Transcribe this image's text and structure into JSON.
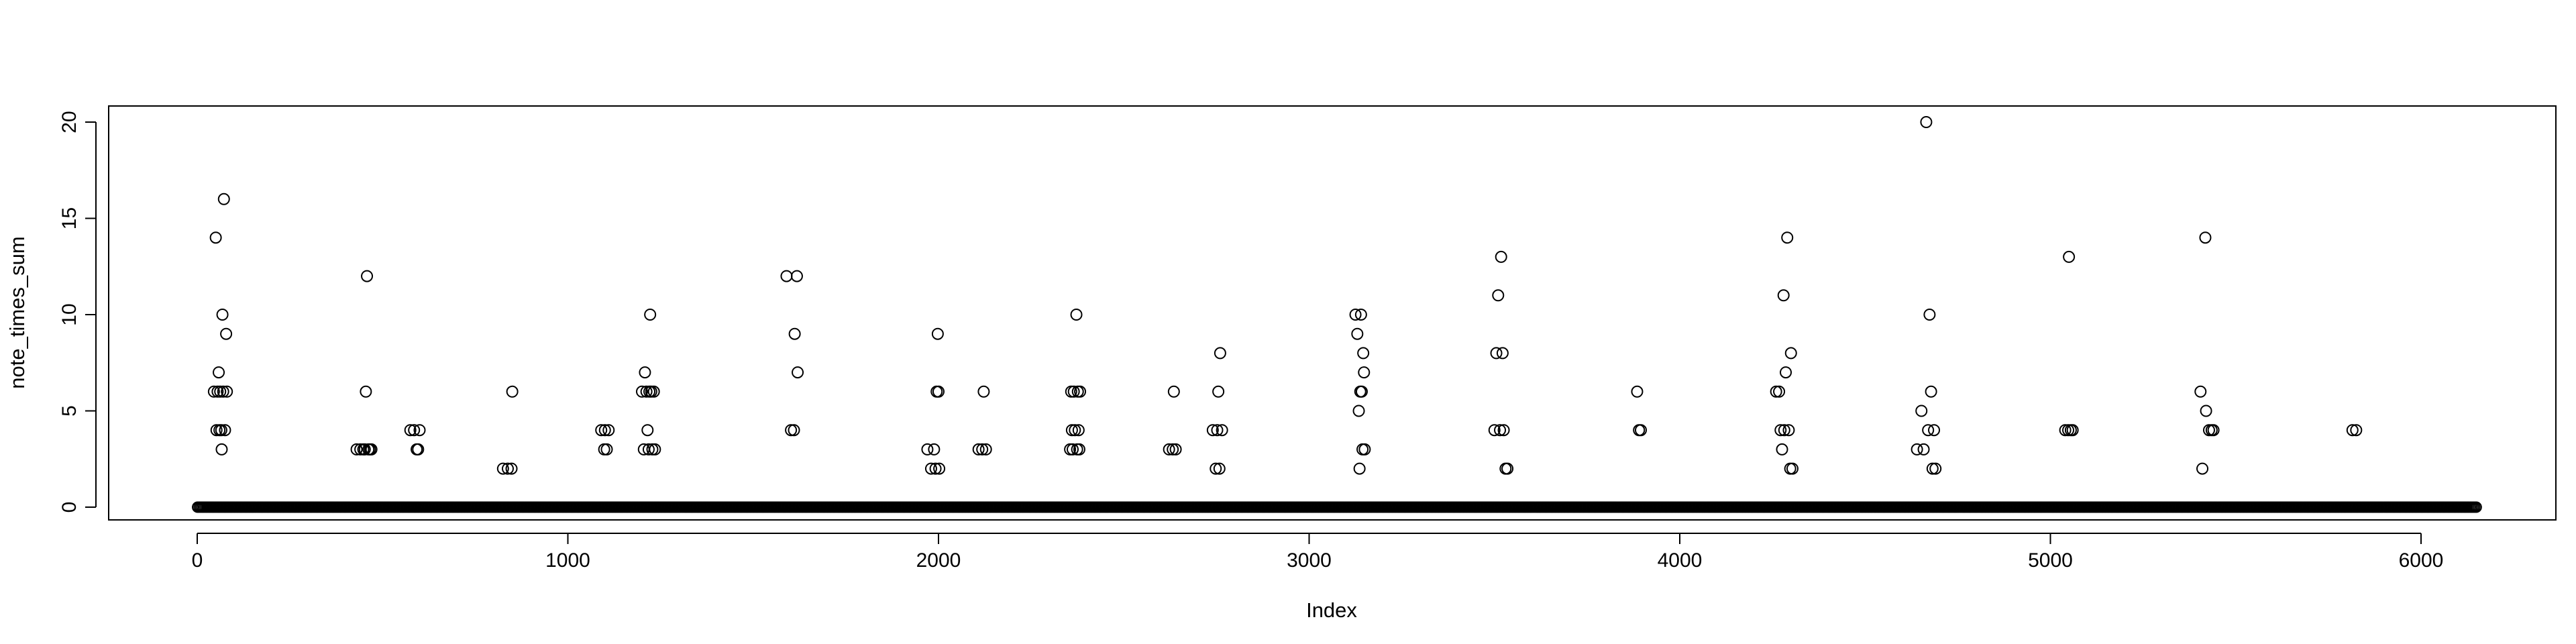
{
  "chart_data": {
    "type": "scatter",
    "title": "",
    "xlabel": "Index",
    "ylabel": "note_times_sum",
    "xlim": [
      0,
      6150
    ],
    "ylim": [
      0,
      20
    ],
    "x_ticks": [
      0,
      1000,
      2000,
      3000,
      4000,
      5000,
      6000
    ],
    "y_ticks": [
      0,
      5,
      10,
      15,
      20
    ],
    "x_tick_labels": [
      "0",
      "1000",
      "2000",
      "3000",
      "4000",
      "5000",
      "6000"
    ],
    "y_tick_labels": [
      "0",
      "5",
      "10",
      "15",
      "20"
    ],
    "grid": false,
    "legend": "none",
    "marker": "open-circle",
    "baseline": {
      "y": 0,
      "x_from": 1,
      "x_to": 6150,
      "note": "all other indices have value 0"
    },
    "points": [
      {
        "x": 45,
        "y": 6
      },
      {
        "x": 50,
        "y": 14
      },
      {
        "x": 52,
        "y": 4
      },
      {
        "x": 55,
        "y": 6
      },
      {
        "x": 58,
        "y": 7
      },
      {
        "x": 60,
        "y": 4
      },
      {
        "x": 62,
        "y": 6
      },
      {
        "x": 65,
        "y": 4
      },
      {
        "x": 66,
        "y": 3
      },
      {
        "x": 68,
        "y": 10
      },
      {
        "x": 70,
        "y": 6
      },
      {
        "x": 72,
        "y": 16
      },
      {
        "x": 75,
        "y": 4
      },
      {
        "x": 78,
        "y": 9
      },
      {
        "x": 80,
        "y": 6
      },
      {
        "x": 430,
        "y": 3
      },
      {
        "x": 440,
        "y": 3
      },
      {
        "x": 448,
        "y": 3
      },
      {
        "x": 452,
        "y": 3
      },
      {
        "x": 455,
        "y": 6
      },
      {
        "x": 458,
        "y": 12
      },
      {
        "x": 462,
        "y": 3
      },
      {
        "x": 466,
        "y": 3
      },
      {
        "x": 470,
        "y": 3
      },
      {
        "x": 575,
        "y": 4
      },
      {
        "x": 585,
        "y": 4
      },
      {
        "x": 592,
        "y": 3
      },
      {
        "x": 596,
        "y": 3
      },
      {
        "x": 600,
        "y": 4
      },
      {
        "x": 825,
        "y": 2
      },
      {
        "x": 838,
        "y": 2
      },
      {
        "x": 848,
        "y": 2
      },
      {
        "x": 850,
        "y": 6
      },
      {
        "x": 1090,
        "y": 4
      },
      {
        "x": 1098,
        "y": 3
      },
      {
        "x": 1100,
        "y": 4
      },
      {
        "x": 1105,
        "y": 3
      },
      {
        "x": 1110,
        "y": 4
      },
      {
        "x": 1200,
        "y": 6
      },
      {
        "x": 1205,
        "y": 3
      },
      {
        "x": 1208,
        "y": 7
      },
      {
        "x": 1212,
        "y": 6
      },
      {
        "x": 1215,
        "y": 4
      },
      {
        "x": 1218,
        "y": 3
      },
      {
        "x": 1220,
        "y": 6
      },
      {
        "x": 1222,
        "y": 10
      },
      {
        "x": 1225,
        "y": 6
      },
      {
        "x": 1228,
        "y": 3
      },
      {
        "x": 1232,
        "y": 6
      },
      {
        "x": 1235,
        "y": 3
      },
      {
        "x": 1590,
        "y": 12
      },
      {
        "x": 1602,
        "y": 4
      },
      {
        "x": 1610,
        "y": 4
      },
      {
        "x": 1612,
        "y": 9
      },
      {
        "x": 1618,
        "y": 12
      },
      {
        "x": 1620,
        "y": 7
      },
      {
        "x": 1970,
        "y": 3
      },
      {
        "x": 1980,
        "y": 2
      },
      {
        "x": 1988,
        "y": 3
      },
      {
        "x": 1992,
        "y": 2
      },
      {
        "x": 1995,
        "y": 6
      },
      {
        "x": 1998,
        "y": 9
      },
      {
        "x": 2000,
        "y": 6
      },
      {
        "x": 2002,
        "y": 2
      },
      {
        "x": 2108,
        "y": 3
      },
      {
        "x": 2118,
        "y": 3
      },
      {
        "x": 2122,
        "y": 6
      },
      {
        "x": 2128,
        "y": 3
      },
      {
        "x": 2355,
        "y": 3
      },
      {
        "x": 2358,
        "y": 6
      },
      {
        "x": 2360,
        "y": 4
      },
      {
        "x": 2362,
        "y": 3
      },
      {
        "x": 2365,
        "y": 6
      },
      {
        "x": 2368,
        "y": 4
      },
      {
        "x": 2372,
        "y": 10
      },
      {
        "x": 2374,
        "y": 3
      },
      {
        "x": 2376,
        "y": 6
      },
      {
        "x": 2378,
        "y": 4
      },
      {
        "x": 2380,
        "y": 3
      },
      {
        "x": 2382,
        "y": 6
      },
      {
        "x": 2622,
        "y": 3
      },
      {
        "x": 2632,
        "y": 3
      },
      {
        "x": 2635,
        "y": 6
      },
      {
        "x": 2640,
        "y": 3
      },
      {
        "x": 2740,
        "y": 4
      },
      {
        "x": 2748,
        "y": 2
      },
      {
        "x": 2752,
        "y": 4
      },
      {
        "x": 2755,
        "y": 6
      },
      {
        "x": 2758,
        "y": 2
      },
      {
        "x": 2760,
        "y": 8
      },
      {
        "x": 2765,
        "y": 4
      },
      {
        "x": 3125,
        "y": 10
      },
      {
        "x": 3130,
        "y": 9
      },
      {
        "x": 3134,
        "y": 5
      },
      {
        "x": 3136,
        "y": 2
      },
      {
        "x": 3138,
        "y": 6
      },
      {
        "x": 3140,
        "y": 10
      },
      {
        "x": 3142,
        "y": 6
      },
      {
        "x": 3144,
        "y": 3
      },
      {
        "x": 3146,
        "y": 8
      },
      {
        "x": 3148,
        "y": 7
      },
      {
        "x": 3150,
        "y": 3
      },
      {
        "x": 3500,
        "y": 4
      },
      {
        "x": 3505,
        "y": 8
      },
      {
        "x": 3510,
        "y": 11
      },
      {
        "x": 3515,
        "y": 4
      },
      {
        "x": 3518,
        "y": 13
      },
      {
        "x": 3522,
        "y": 8
      },
      {
        "x": 3525,
        "y": 4
      },
      {
        "x": 3530,
        "y": 2
      },
      {
        "x": 3535,
        "y": 2
      },
      {
        "x": 3885,
        "y": 6
      },
      {
        "x": 3890,
        "y": 4
      },
      {
        "x": 3895,
        "y": 4
      },
      {
        "x": 4260,
        "y": 6
      },
      {
        "x": 4268,
        "y": 6
      },
      {
        "x": 4272,
        "y": 4
      },
      {
        "x": 4276,
        "y": 3
      },
      {
        "x": 4280,
        "y": 11
      },
      {
        "x": 4282,
        "y": 4
      },
      {
        "x": 4286,
        "y": 7
      },
      {
        "x": 4290,
        "y": 14
      },
      {
        "x": 4294,
        "y": 4
      },
      {
        "x": 4298,
        "y": 2
      },
      {
        "x": 4300,
        "y": 8
      },
      {
        "x": 4304,
        "y": 2
      },
      {
        "x": 4640,
        "y": 3
      },
      {
        "x": 4652,
        "y": 5
      },
      {
        "x": 4658,
        "y": 3
      },
      {
        "x": 4665,
        "y": 20
      },
      {
        "x": 4670,
        "y": 4
      },
      {
        "x": 4674,
        "y": 10
      },
      {
        "x": 4678,
        "y": 6
      },
      {
        "x": 4682,
        "y": 2
      },
      {
        "x": 4686,
        "y": 4
      },
      {
        "x": 4690,
        "y": 2
      },
      {
        "x": 5040,
        "y": 4
      },
      {
        "x": 5048,
        "y": 4
      },
      {
        "x": 5050,
        "y": 13
      },
      {
        "x": 5055,
        "y": 4
      },
      {
        "x": 5060,
        "y": 4
      },
      {
        "x": 5405,
        "y": 6
      },
      {
        "x": 5410,
        "y": 2
      },
      {
        "x": 5418,
        "y": 14
      },
      {
        "x": 5420,
        "y": 5
      },
      {
        "x": 5428,
        "y": 4
      },
      {
        "x": 5435,
        "y": 4
      },
      {
        "x": 5440,
        "y": 4
      },
      {
        "x": 5815,
        "y": 4
      },
      {
        "x": 5825,
        "y": 4
      }
    ]
  }
}
